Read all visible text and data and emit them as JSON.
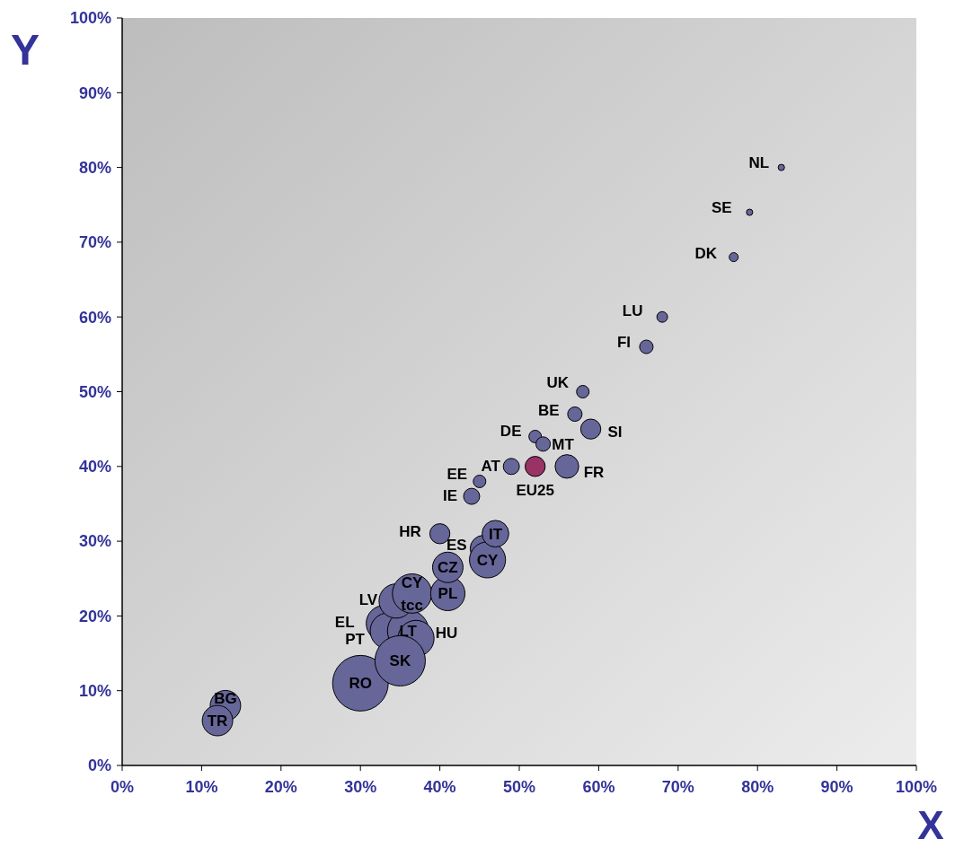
{
  "chart_data": {
    "type": "bubble",
    "xlabel": "X",
    "ylabel": "Y",
    "xlim": [
      0,
      100
    ],
    "ylim": [
      0,
      100
    ],
    "xticks": [
      {
        "value": 0,
        "label": "0%"
      },
      {
        "value": 10,
        "label": "10%"
      },
      {
        "value": 20,
        "label": "20%"
      },
      {
        "value": 30,
        "label": "30%"
      },
      {
        "value": 40,
        "label": "40%"
      },
      {
        "value": 50,
        "label": "50%"
      },
      {
        "value": 60,
        "label": "60%"
      },
      {
        "value": 70,
        "label": "70%"
      },
      {
        "value": 80,
        "label": "80%"
      },
      {
        "value": 90,
        "label": "90%"
      },
      {
        "value": 100,
        "label": "100%"
      }
    ],
    "yticks": [
      {
        "value": 0,
        "label": "0%"
      },
      {
        "value": 10,
        "label": "10%"
      },
      {
        "value": 20,
        "label": "20%"
      },
      {
        "value": 30,
        "label": "30%"
      },
      {
        "value": 40,
        "label": "40%"
      },
      {
        "value": 50,
        "label": "50%"
      },
      {
        "value": 60,
        "label": "60%"
      },
      {
        "value": 70,
        "label": "70%"
      },
      {
        "value": 80,
        "label": "80%"
      },
      {
        "value": 90,
        "label": "90%"
      },
      {
        "value": 100,
        "label": "100%"
      }
    ],
    "grid": false,
    "series": [
      {
        "name": "RO",
        "color": "#666699",
        "x": [
          30
        ],
        "values": [
          11
        ],
        "sizes": [
          1
        ]
      },
      {
        "name": "EL",
        "color": "#666699",
        "x": [
          33
        ],
        "values": [
          19
        ],
        "sizes": [
          0.42
        ]
      },
      {
        "name": "PT",
        "color": "#666699",
        "x": [
          33.5
        ],
        "values": [
          18
        ],
        "sizes": [
          0.42
        ]
      },
      {
        "name": "LT",
        "color": "#666699",
        "x": [
          36
        ],
        "values": [
          18
        ],
        "sizes": [
          0.55
        ]
      },
      {
        "name": "HU",
        "color": "#666699",
        "x": [
          37
        ],
        "values": [
          17
        ],
        "sizes": [
          0.42
        ]
      },
      {
        "name": "SK",
        "color": "#666699",
        "x": [
          35
        ],
        "values": [
          14
        ],
        "sizes": [
          0.82
        ]
      },
      {
        "name": "LV",
        "color": "#666699",
        "x": [
          34.5
        ],
        "values": [
          22
        ],
        "sizes": [
          0.38
        ]
      },
      {
        "name": "CY tcc",
        "color": "#666699",
        "x": [
          36.5
        ],
        "values": [
          23
        ],
        "sizes": [
          0.5
        ]
      },
      {
        "name": "PL",
        "color": "#666699",
        "x": [
          41
        ],
        "values": [
          23
        ],
        "sizes": [
          0.38
        ]
      },
      {
        "name": "CZ",
        "color": "#666699",
        "x": [
          41
        ],
        "values": [
          26.5
        ],
        "sizes": [
          0.3
        ]
      },
      {
        "name": "ES",
        "color": "#666699",
        "x": [
          45.5
        ],
        "values": [
          29
        ],
        "sizes": [
          0.23
        ]
      },
      {
        "name": "CY",
        "color": "#666699",
        "x": [
          46
        ],
        "values": [
          27.5
        ],
        "sizes": [
          0.42
        ]
      },
      {
        "name": "IT",
        "color": "#666699",
        "x": [
          47
        ],
        "values": [
          31
        ],
        "sizes": [
          0.23
        ]
      },
      {
        "name": "HR",
        "color": "#666699",
        "x": [
          40
        ],
        "values": [
          31
        ],
        "sizes": [
          0.13
        ]
      },
      {
        "name": "BG",
        "color": "#666699",
        "x": [
          13
        ],
        "values": [
          8
        ],
        "sizes": [
          0.3
        ]
      },
      {
        "name": "TR",
        "color": "#666699",
        "x": [
          12
        ],
        "values": [
          6
        ],
        "sizes": [
          0.3
        ]
      },
      {
        "name": "IE",
        "color": "#666699",
        "x": [
          44
        ],
        "values": [
          36
        ],
        "sizes": [
          0.084
        ]
      },
      {
        "name": "EE",
        "color": "#666699",
        "x": [
          45
        ],
        "values": [
          38
        ],
        "sizes": [
          0.051
        ]
      },
      {
        "name": "AT",
        "color": "#666699",
        "x": [
          49
        ],
        "values": [
          40
        ],
        "sizes": [
          0.084
        ]
      },
      {
        "name": "EU25",
        "color": "#993366",
        "x": [
          52
        ],
        "values": [
          40
        ],
        "sizes": [
          0.13
        ]
      },
      {
        "name": "FR",
        "color": "#666699",
        "x": [
          56
        ],
        "values": [
          40
        ],
        "sizes": [
          0.18
        ]
      },
      {
        "name": "DE",
        "color": "#666699",
        "x": [
          52
        ],
        "values": [
          44
        ],
        "sizes": [
          0.051
        ]
      },
      {
        "name": "MT",
        "color": "#666699",
        "x": [
          53
        ],
        "values": [
          43
        ],
        "sizes": [
          0.067
        ]
      },
      {
        "name": "SI",
        "color": "#666699",
        "x": [
          59
        ],
        "values": [
          45
        ],
        "sizes": [
          0.13
        ]
      },
      {
        "name": "BE",
        "color": "#666699",
        "x": [
          57
        ],
        "values": [
          47
        ],
        "sizes": [
          0.067
        ]
      },
      {
        "name": "UK",
        "color": "#666699",
        "x": [
          58
        ],
        "values": [
          50
        ],
        "sizes": [
          0.051
        ]
      },
      {
        "name": "FI",
        "color": "#666699",
        "x": [
          66
        ],
        "values": [
          56
        ],
        "sizes": [
          0.059
        ]
      },
      {
        "name": "LU",
        "color": "#666699",
        "x": [
          68
        ],
        "values": [
          60
        ],
        "sizes": [
          0.037
        ]
      },
      {
        "name": "DK",
        "color": "#666699",
        "x": [
          77
        ],
        "values": [
          68
        ],
        "sizes": [
          0.026
        ]
      },
      {
        "name": "SE",
        "color": "#666699",
        "x": [
          79
        ],
        "values": [
          74
        ],
        "sizes": [
          0.013
        ]
      },
      {
        "name": "NL",
        "color": "#666699",
        "x": [
          83
        ],
        "values": [
          80
        ],
        "sizes": [
          0.013
        ]
      }
    ]
  }
}
